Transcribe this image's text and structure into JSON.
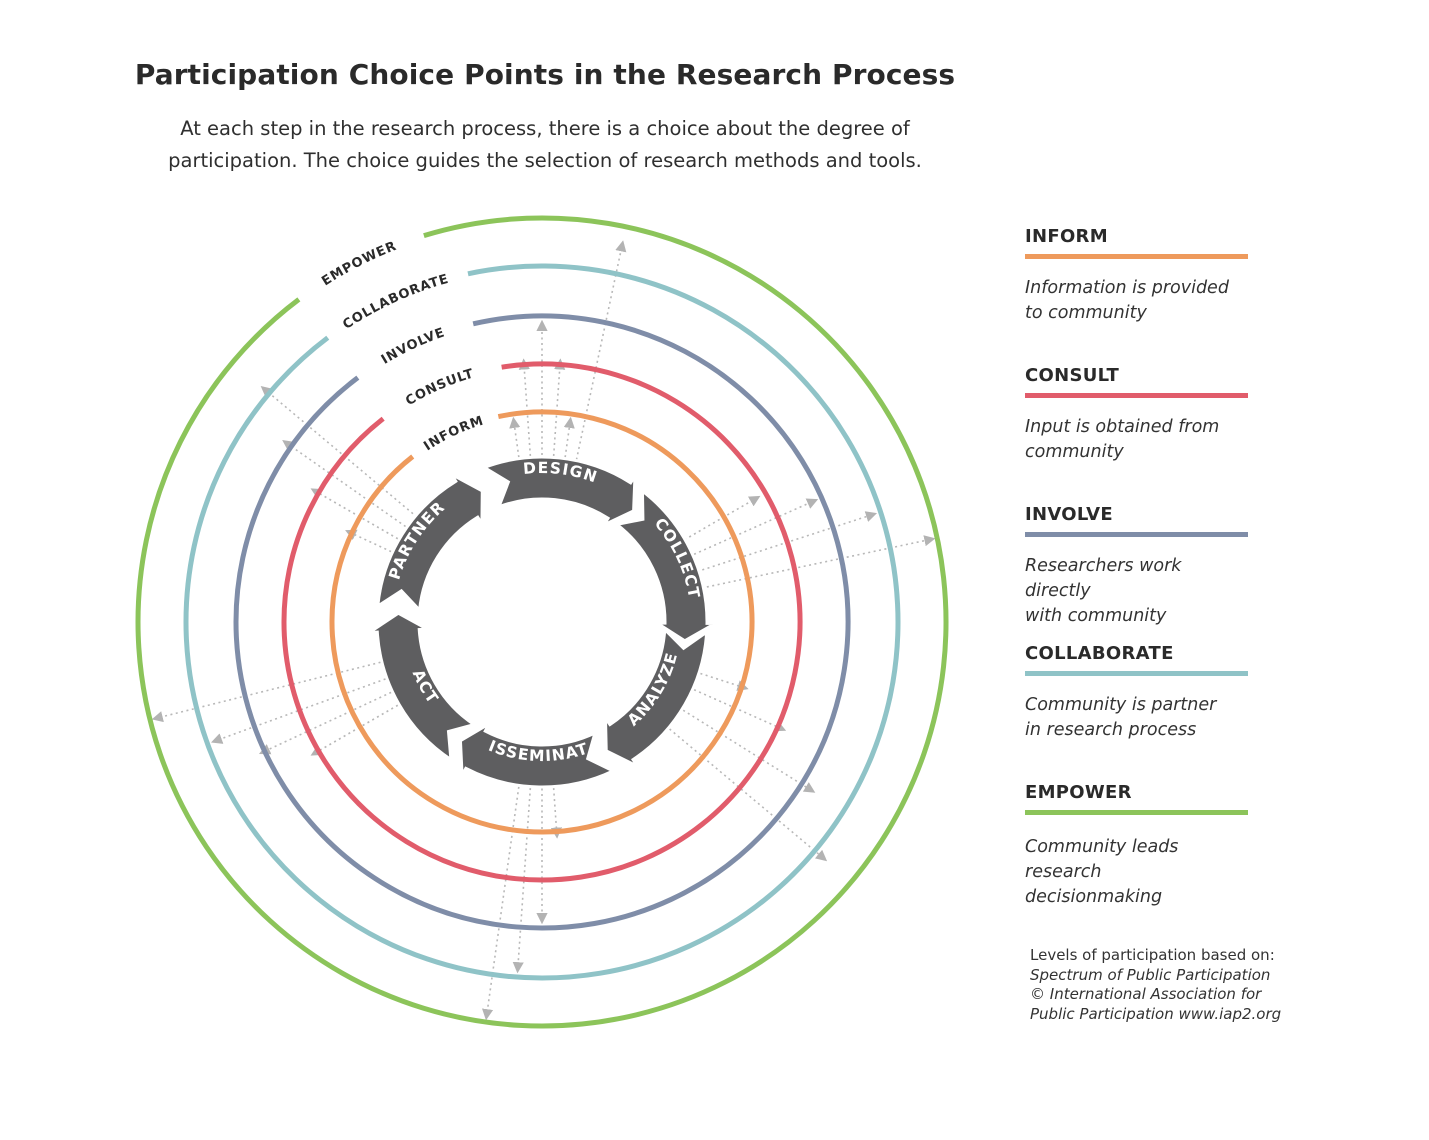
{
  "title": "Participation Choice Points in the Research Process",
  "subtitle_line1": "At each step in the research process, there is a choice about the degree of",
  "subtitle_line2": "participation. The choice guides the selection of research methods and tools.",
  "rings": [
    {
      "label": "INFORM",
      "color": "#EE9A5C"
    },
    {
      "label": "CONSULT",
      "color": "#E15C6B"
    },
    {
      "label": "INVOLVE",
      "color": "#7F8DA8"
    },
    {
      "label": "COLLABORATE",
      "color": "#8FC3C7"
    },
    {
      "label": "EMPOWER",
      "color": "#8CC45A"
    }
  ],
  "steps": [
    "DESIGN",
    "COLLECT",
    "ANALYZE",
    "DISSEMINATE",
    "ACT",
    "PARTNER"
  ],
  "cycle_color": "#5E5E60",
  "legend": [
    {
      "title": "INFORM",
      "line1": "Information is provided",
      "line2": "to community"
    },
    {
      "title": "CONSULT",
      "line1": "Input is obtained from",
      "line2": "community"
    },
    {
      "title": "INVOLVE",
      "line1": "Researchers work directly",
      "line2": "with community"
    },
    {
      "title": "COLLABORATE",
      "line1": "Community is partner",
      "line2": "in research process"
    },
    {
      "title": "EMPOWER",
      "line1": "Community leads research",
      "line2": "decisionmaking"
    }
  ],
  "source": {
    "line1": "Levels of participation based on:",
    "line2": "Spectrum of Public Participation",
    "line3": "© International Association for",
    "line4": "Public Participation www.iap2.org"
  }
}
